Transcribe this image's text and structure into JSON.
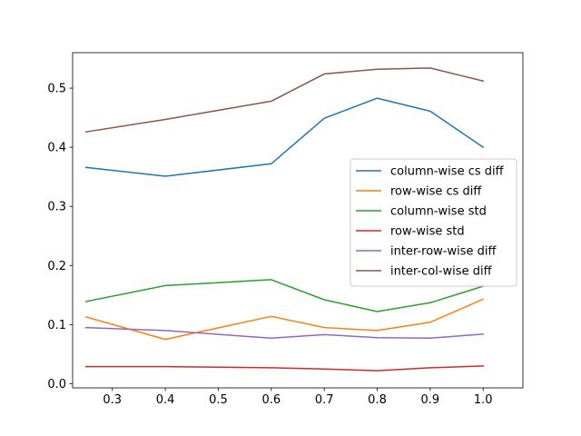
{
  "chart_data": {
    "type": "line",
    "title": "",
    "xlabel": "",
    "ylabel": "",
    "x": [
      0.25,
      0.4,
      0.6,
      0.7,
      0.8,
      0.9,
      1.0
    ],
    "xlim": [
      0.225,
      1.075
    ],
    "ylim": [
      -0.007,
      0.56
    ],
    "xticks": [
      0.3,
      0.4,
      0.5,
      0.6,
      0.7,
      0.8,
      0.9,
      1.0
    ],
    "xtick_labels": [
      "0.3",
      "0.4",
      "0.5",
      "0.6",
      "0.7",
      "0.8",
      "0.9",
      "1.0"
    ],
    "yticks": [
      0.0,
      0.1,
      0.2,
      0.3,
      0.4,
      0.5
    ],
    "ytick_labels": [
      "0.0",
      "0.1",
      "0.2",
      "0.3",
      "0.4",
      "0.5"
    ],
    "grid": false,
    "legend_position": "center-right",
    "series": [
      {
        "name": "column-wise cs diff",
        "color": "#1f77b4",
        "values": [
          0.366,
          0.351,
          0.372,
          0.449,
          0.483,
          0.461,
          0.4
        ]
      },
      {
        "name": "row-wise cs diff",
        "color": "#ff7f0e",
        "values": [
          0.113,
          0.075,
          0.114,
          0.095,
          0.09,
          0.104,
          0.143
        ]
      },
      {
        "name": "column-wise std",
        "color": "#2ca02c",
        "values": [
          0.139,
          0.166,
          0.176,
          0.142,
          0.122,
          0.137,
          0.165
        ]
      },
      {
        "name": "row-wise std",
        "color": "#d62728",
        "values": [
          0.029,
          0.029,
          0.027,
          0.025,
          0.022,
          0.027,
          0.03
        ]
      },
      {
        "name": "inter-row-wise diff",
        "color": "#9467bd",
        "values": [
          0.095,
          0.09,
          0.077,
          0.083,
          0.078,
          0.077,
          0.084
        ]
      },
      {
        "name": "inter-col-wise diff",
        "color": "#8c564b",
        "values": [
          0.426,
          0.447,
          0.478,
          0.524,
          0.532,
          0.534,
          0.512
        ]
      }
    ]
  }
}
